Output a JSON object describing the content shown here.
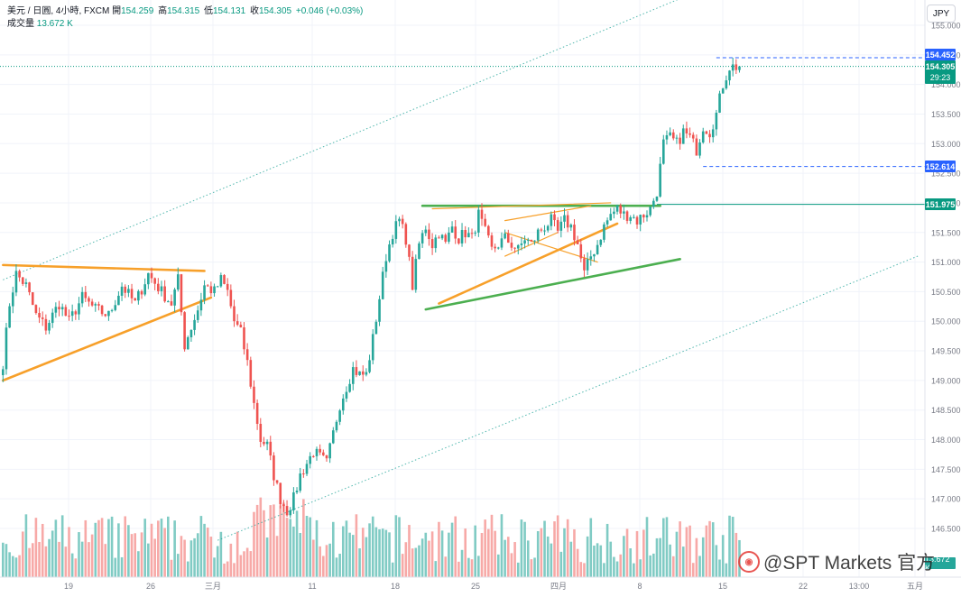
{
  "legend": {
    "symbol": "美元 / 日圓, 4小時, FXCM",
    "open_label": "開",
    "open": "154.259",
    "high_label": "高",
    "high": "154.315",
    "low_label": "低",
    "low": "154.131",
    "close_label": "收",
    "close": "154.305",
    "change": "+0.046 (+0.03%)",
    "volume_label": "成交量",
    "volume": "13.672 K"
  },
  "currency_button": "JPY",
  "price_tags": {
    "high_marker": "154.452",
    "last_price": "154.305",
    "countdown": "29:23",
    "support_level": "152.614",
    "breakout_level": "151.975",
    "volume_value": "13.672 K"
  },
  "watermark": "@SPT Markets 官方",
  "colors": {
    "up": "#26a69a",
    "down": "#ef5350",
    "volume_up": "#80cbc4",
    "volume_down": "#f7a9a7",
    "trendline_orange": "#f7a02a",
    "trendline_green": "#4caf50",
    "tag_blue": "#2962ff",
    "tag_teal": "#089981"
  },
  "chart_data": {
    "type": "candlestick",
    "title": "美元 / 日圓, 4小時, FXCM",
    "xlabel": "",
    "ylabel": "",
    "x_tick_labels": [
      "19",
      "26",
      "三月",
      "11",
      "18",
      "25",
      "四月",
      "8",
      "15",
      "22",
      "13:00",
      "五月"
    ],
    "y_tick_labels": [
      "155.000",
      "154.500",
      "154.000",
      "153.500",
      "153.000",
      "152.500",
      "152.000",
      "151.500",
      "151.000",
      "150.500",
      "150.000",
      "149.500",
      "149.000",
      "148.500",
      "148.000",
      "147.500",
      "147.000",
      "146.500"
    ],
    "ylim": [
      146.3,
      155.4
    ],
    "grid": true,
    "series": [
      {
        "name": "",
        "type": "candlestick",
        "anchors": [
          [
            0,
            149.3
          ],
          [
            2,
            150.3
          ],
          [
            4,
            150.8
          ],
          [
            7,
            150.6
          ],
          [
            10,
            150.1
          ],
          [
            13,
            149.9
          ],
          [
            17,
            150.3
          ],
          [
            20,
            150.0
          ],
          [
            24,
            150.4
          ],
          [
            28,
            150.2
          ],
          [
            32,
            150.1
          ],
          [
            36,
            150.6
          ],
          [
            40,
            150.3
          ],
          [
            44,
            150.8
          ],
          [
            48,
            150.5
          ],
          [
            51,
            150.3
          ],
          [
            53,
            150.7
          ],
          [
            55,
            149.6
          ],
          [
            57,
            149.9
          ],
          [
            59,
            150.2
          ],
          [
            61,
            150.6
          ],
          [
            64,
            150.5
          ],
          [
            66,
            150.7
          ],
          [
            68,
            150.5
          ],
          [
            70,
            150.0
          ],
          [
            72,
            149.8
          ],
          [
            74,
            149.3
          ],
          [
            76,
            148.6
          ],
          [
            78,
            148.0
          ],
          [
            80,
            147.9
          ],
          [
            82,
            147.4
          ],
          [
            84,
            147.0
          ],
          [
            86,
            146.8
          ],
          [
            88,
            147.0
          ],
          [
            90,
            147.4
          ],
          [
            92,
            147.6
          ],
          [
            94,
            147.8
          ],
          [
            96,
            147.7
          ],
          [
            98,
            147.6
          ],
          [
            100,
            148.1
          ],
          [
            102,
            148.6
          ],
          [
            104,
            148.9
          ],
          [
            106,
            149.2
          ],
          [
            108,
            149.1
          ],
          [
            110,
            149.1
          ],
          [
            112,
            149.7
          ],
          [
            114,
            150.4
          ],
          [
            116,
            151.1
          ],
          [
            118,
            151.5
          ],
          [
            120,
            151.7
          ],
          [
            122,
            151.4
          ],
          [
            124,
            150.6
          ],
          [
            126,
            151.3
          ],
          [
            128,
            151.6
          ],
          [
            130,
            151.3
          ],
          [
            132,
            151.5
          ],
          [
            134,
            151.3
          ],
          [
            136,
            151.6
          ],
          [
            138,
            151.4
          ],
          [
            140,
            151.5
          ],
          [
            142,
            151.4
          ],
          [
            144,
            151.8
          ],
          [
            146,
            151.5
          ],
          [
            148,
            151.2
          ],
          [
            150,
            151.3
          ],
          [
            152,
            151.4
          ],
          [
            154,
            151.3
          ],
          [
            156,
            151.2
          ],
          [
            158,
            151.4
          ],
          [
            160,
            151.3
          ],
          [
            162,
            151.5
          ],
          [
            164,
            151.6
          ],
          [
            166,
            151.7
          ],
          [
            168,
            151.5
          ],
          [
            170,
            151.7
          ],
          [
            172,
            151.6
          ],
          [
            174,
            151.3
          ],
          [
            176,
            150.8
          ],
          [
            178,
            151.1
          ],
          [
            180,
            151.3
          ],
          [
            182,
            151.6
          ],
          [
            184,
            151.8
          ],
          [
            186,
            151.9
          ],
          [
            188,
            151.8
          ],
          [
            190,
            151.8
          ],
          [
            192,
            151.7
          ],
          [
            194,
            151.8
          ],
          [
            196,
            151.9
          ],
          [
            198,
            152.2
          ],
          [
            200,
            153.0
          ],
          [
            202,
            153.1
          ],
          [
            204,
            153.0
          ],
          [
            206,
            153.2
          ],
          [
            208,
            153.1
          ],
          [
            210,
            152.9
          ],
          [
            212,
            153.3
          ],
          [
            214,
            153.2
          ],
          [
            216,
            153.5
          ],
          [
            218,
            154.0
          ],
          [
            220,
            154.3
          ],
          [
            223,
            154.3
          ]
        ],
        "range_high": 154.452,
        "last_close": 154.305
      },
      {
        "name": "成交量",
        "type": "volume",
        "last_value": "13.672 K"
      }
    ],
    "trendlines": [
      {
        "color": "orange",
        "from": [
          0,
          150.95
        ],
        "to": [
          61,
          150.85
        ]
      },
      {
        "color": "orange",
        "from": [
          0,
          149.0
        ],
        "to": [
          63,
          150.4
        ]
      },
      {
        "color": "green",
        "from": [
          127,
          151.95
        ],
        "to": [
          199,
          151.95
        ]
      },
      {
        "color": "orange",
        "from": [
          130,
          151.9
        ],
        "to": [
          184,
          152.0
        ]
      },
      {
        "color": "green",
        "from": [
          128,
          150.2
        ],
        "to": [
          205,
          151.05
        ]
      },
      {
        "color": "orange",
        "from": [
          132,
          150.3
        ],
        "to": [
          186,
          151.65
        ]
      },
      {
        "color": "orange",
        "from": [
          152,
          151.7
        ],
        "to": [
          178,
          151.95
        ]
      },
      {
        "color": "orange",
        "from": [
          152,
          151.5
        ],
        "to": [
          180,
          151.0
        ]
      },
      {
        "color": "orange",
        "from": [
          152,
          151.1
        ],
        "to": [
          168,
          151.5
        ]
      }
    ],
    "channel": {
      "upper": {
        "from": [
          0,
          150.7
        ],
        "to": [
          205,
          155.45
        ]
      },
      "lower": {
        "from": [
          65,
          146.3
        ],
        "to": [
          277,
          151.1
        ]
      }
    },
    "horizontal_levels": [
      {
        "value": 154.452,
        "style": "dashed"
      },
      {
        "value": 154.305,
        "style": "dotted"
      },
      {
        "value": 152.614,
        "style": "dashed"
      },
      {
        "value": 151.975,
        "style": "solid"
      }
    ]
  }
}
